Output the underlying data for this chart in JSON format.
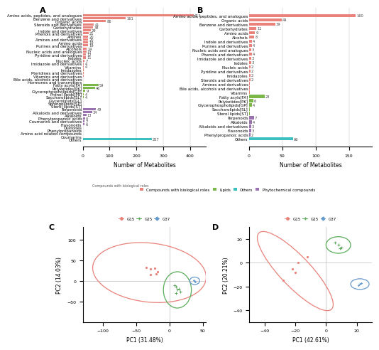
{
  "panel_A_categories": [
    "Amino acids, peptides, and analogues",
    "Benzene and derivatives",
    "Organic acids",
    "Steroids and derivatives",
    "Carbohydrates",
    "Indole and derivatives",
    "Phenols and derivatives",
    "Amines",
    "Amines and derivatives",
    "Amino acids",
    "Purines and derivatives",
    "Alcohols",
    "Nucleic acids and analogues",
    "Pyridine and derivatives",
    "Indoles",
    "Nucleic acids",
    "Imidazole and derivatives",
    "Vitamins",
    "Imidazoles",
    "Pteridines and derivatives",
    "Vitamins and derivatives",
    "Bile acids, alcohols and derivatives",
    "Hormones and transmitters",
    "Fatty acyls[FA]",
    "Polyketides[PK]",
    "Glycerophospholipids[GP]",
    "Prenol lipids[PR]",
    "Saccharolipids[SL]",
    "Glycerolipids[GL]",
    "Sphingolipids[SP]",
    "Sterol lipids[ST]",
    "Terpenoids",
    "Alkaloids and derivatives",
    "Alkaloids",
    "Phenylpropanoic acids",
    "Coumarins and derivatives",
    "Flavonoids",
    "Quinones",
    "Phenylpropanoids",
    "Amino acid related compounds",
    "Coumarins",
    "Others"
  ],
  "panel_A_values": [
    413,
    161,
    86,
    41,
    38,
    29,
    21,
    20,
    20,
    19,
    19,
    14,
    13,
    12,
    11,
    7,
    4,
    4,
    3,
    2,
    2,
    1,
    1,
    59,
    46,
    9,
    4,
    4,
    1,
    1,
    1,
    49,
    34,
    13,
    8,
    7,
    6,
    1,
    1,
    1,
    1,
    257
  ],
  "panel_A_colors": [
    "#e8827a",
    "#e8827a",
    "#e8827a",
    "#e8827a",
    "#e8827a",
    "#e8827a",
    "#e8827a",
    "#e8827a",
    "#e8827a",
    "#e8827a",
    "#e8827a",
    "#e8827a",
    "#e8827a",
    "#e8827a",
    "#e8827a",
    "#e8827a",
    "#e8827a",
    "#e8827a",
    "#e8827a",
    "#e8827a",
    "#e8827a",
    "#e8827a",
    "#e8827a",
    "#7ab648",
    "#7ab648",
    "#7ab648",
    "#7ab648",
    "#7ab648",
    "#7ab648",
    "#7ab648",
    "#7ab648",
    "#9b72b0",
    "#9b72b0",
    "#9b72b0",
    "#9b72b0",
    "#9b72b0",
    "#9b72b0",
    "#9b72b0",
    "#9b72b0",
    "#9b72b0",
    "#9b72b0",
    "#3bbfbf"
  ],
  "panel_B_categories": [
    "Amino acids, peptides, and analogues",
    "Organic acids",
    "Benzene and derivatives",
    "Carbohydrates",
    "Amino acids",
    "Alcohols",
    "Indole and derivatives",
    "Purines and derivatives",
    "Nucleic acids and analogues",
    "Phenols and derivatives",
    "Imidazole and derivatives",
    "Indoles",
    "Nucleic acids",
    "Pyridine and derivatives",
    "Imidazoles",
    "Steroids and derivatives",
    "Amines and derivatives",
    "Bile acids, alcohols and derivatives",
    "Vitamins",
    "Fatty acyls[FA]",
    "Polyketides[PK]",
    "Glycerophospholipids[GP]",
    "Saccharolipids[SL]",
    "Sterol lipids[ST]",
    "Terpenoids",
    "Alkaloids",
    "Alkaloids and derivatives",
    "Flavonoids",
    "Phenylpropanoic acids",
    "Others"
  ],
  "panel_B_values": [
    160,
    49,
    39,
    11,
    9,
    8,
    4,
    4,
    3,
    4,
    3,
    3,
    2,
    2,
    2,
    2,
    1,
    1,
    1,
    23,
    6,
    4,
    1,
    1,
    7,
    4,
    3,
    3,
    2,
    66
  ],
  "panel_B_colors": [
    "#e8827a",
    "#e8827a",
    "#e8827a",
    "#e8827a",
    "#e8827a",
    "#e8827a",
    "#e8827a",
    "#e8827a",
    "#e8827a",
    "#e8827a",
    "#e8827a",
    "#e8827a",
    "#e8827a",
    "#e8827a",
    "#e8827a",
    "#e8827a",
    "#e8827a",
    "#e8827a",
    "#e8827a",
    "#7ab648",
    "#7ab648",
    "#7ab648",
    "#7ab648",
    "#7ab648",
    "#9b72b0",
    "#9b72b0",
    "#9b72b0",
    "#9b72b0",
    "#9b72b0",
    "#3bbfbf"
  ],
  "legend_labels": [
    "Compounds with biological roles",
    "Lipids",
    "Others",
    "Phytochemical compounds"
  ],
  "legend_colors": [
    "#e8827a",
    "#7ab648",
    "#3bbfbf",
    "#9b72b0"
  ],
  "background_color": "#ffffff",
  "grid_color": "#bbbbbb",
  "bar_label_fontsize": 4.0,
  "axis_label_fontsize": 5.5,
  "tick_fontsize": 4.5,
  "cat_fontsize": 4.0
}
